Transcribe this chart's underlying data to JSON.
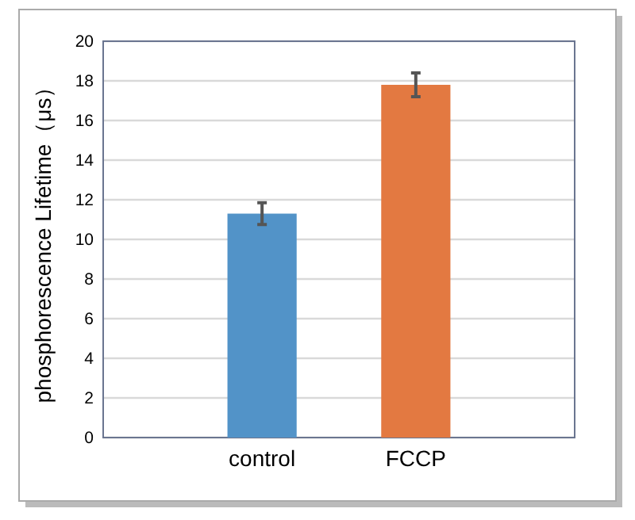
{
  "chart_data": {
    "type": "bar",
    "ylabel": "phosphorescence Lifetime（μs）",
    "categories": [
      "control",
      "FCCP"
    ],
    "values": [
      11.3,
      17.8
    ],
    "colors": [
      "#5293c8",
      "#e37941"
    ],
    "errors": [
      0.55,
      0.6
    ],
    "ylim": [
      0,
      20
    ],
    "yticks": [
      0,
      2,
      4,
      6,
      8,
      10,
      12,
      14,
      16,
      18,
      20
    ],
    "grid": "y"
  }
}
